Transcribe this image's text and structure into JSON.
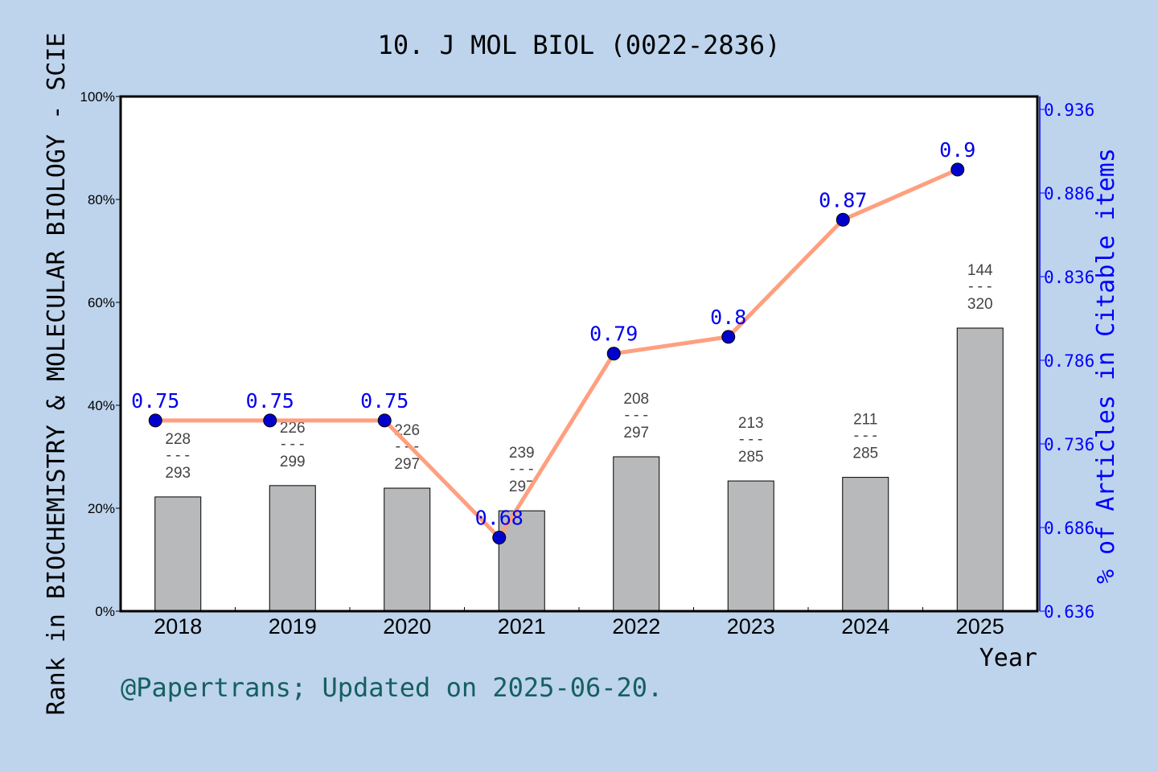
{
  "chart_data": {
    "type": "bar+line",
    "title": "10. J MOL BIOL (0022-2836)",
    "xlabel": "Year",
    "ylabel": "Rank in BIOCHEMISTRY & MOLECULAR BIOLOGY - SCIE",
    "y2label": "% of Articles in Citable items",
    "categories": [
      "2018",
      "2019",
      "2020",
      "2021",
      "2022",
      "2023",
      "2024",
      "2025"
    ],
    "ylim": [
      0,
      100
    ],
    "yticks": [
      "0%",
      "20%",
      "40%",
      "60%",
      "80%",
      "100%"
    ],
    "y2lim": [
      0.636,
      0.9437
    ],
    "y2ticks": [
      "0.636",
      "0.686",
      "0.736",
      "0.786",
      "0.836",
      "0.886",
      "0.936"
    ],
    "bars": {
      "values_percent": [
        22.2,
        24.4,
        23.9,
        19.5,
        30.0,
        25.3,
        26.0,
        55.0
      ],
      "rank": [
        "228",
        "226",
        "226",
        "239",
        "208",
        "213",
        "211",
        "144"
      ],
      "total": [
        "293",
        "299",
        "297",
        "297",
        "297",
        "285",
        "285",
        "320"
      ],
      "separator": "---",
      "color": "#b8b9ba"
    },
    "line": {
      "values": [
        0.75,
        0.75,
        0.75,
        0.68,
        0.79,
        0.8,
        0.87,
        0.9
      ],
      "labels": [
        "0.75",
        "0.75",
        "0.75",
        "0.68",
        "0.79",
        "0.8",
        "0.87",
        "0.9"
      ],
      "color": "#ff9f7f",
      "marker_color": "#0000cc"
    },
    "grid": false
  },
  "footer": "@Papertrans; Updated on 2025-06-20."
}
